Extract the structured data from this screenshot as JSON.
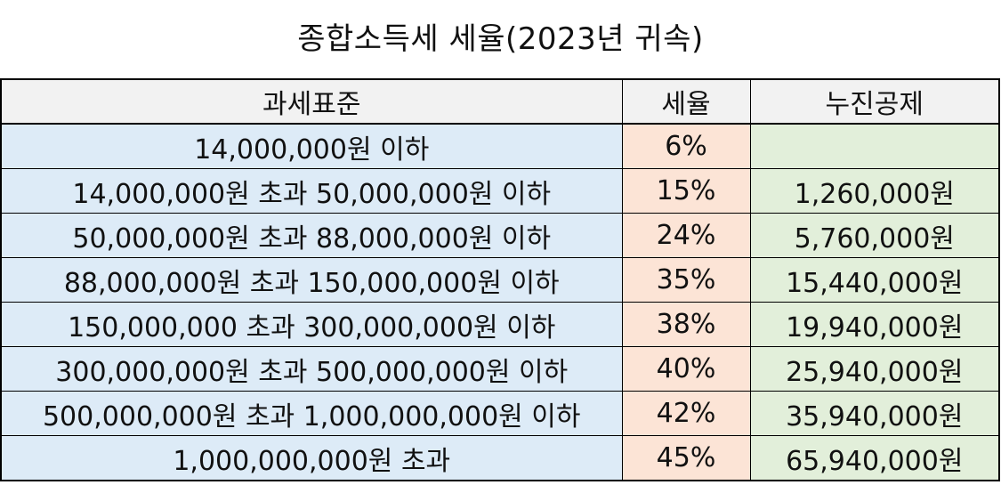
{
  "title": "종합소득세 세율(2023년 귀속)",
  "headers": {
    "bracket": "과세표준",
    "rate": "세율",
    "deduction": "누진공제"
  },
  "rows": [
    {
      "bracket": "14,000,000원 이하",
      "rate": "6%",
      "deduction": ""
    },
    {
      "bracket": "14,000,000원 초과 50,000,000원 이하",
      "rate": "15%",
      "deduction": "1,260,000원"
    },
    {
      "bracket": "50,000,000원 초과 88,000,000원 이하",
      "rate": "24%",
      "deduction": "5,760,000원"
    },
    {
      "bracket": "88,000,000원 초과 150,000,000원 이하",
      "rate": "35%",
      "deduction": "15,440,000원"
    },
    {
      "bracket": "150,000,000 초과 300,000,000원 이하",
      "rate": "38%",
      "deduction": "19,940,000원"
    },
    {
      "bracket": "300,000,000원 초과 500,000,000원 이하",
      "rate": "40%",
      "deduction": "25,940,000원"
    },
    {
      "bracket": "500,000,000원 초과 1,000,000,000원 이하",
      "rate": "42%",
      "deduction": "35,940,000원"
    },
    {
      "bracket": "1,000,000,000원 초과",
      "rate": "45%",
      "deduction": "65,940,000원"
    }
  ],
  "colors": {
    "bracket_fill": "#ddebf7",
    "rate_fill": "#fce4d6",
    "deduction_fill": "#e2efda",
    "header_fill": "#f2f2f2"
  }
}
